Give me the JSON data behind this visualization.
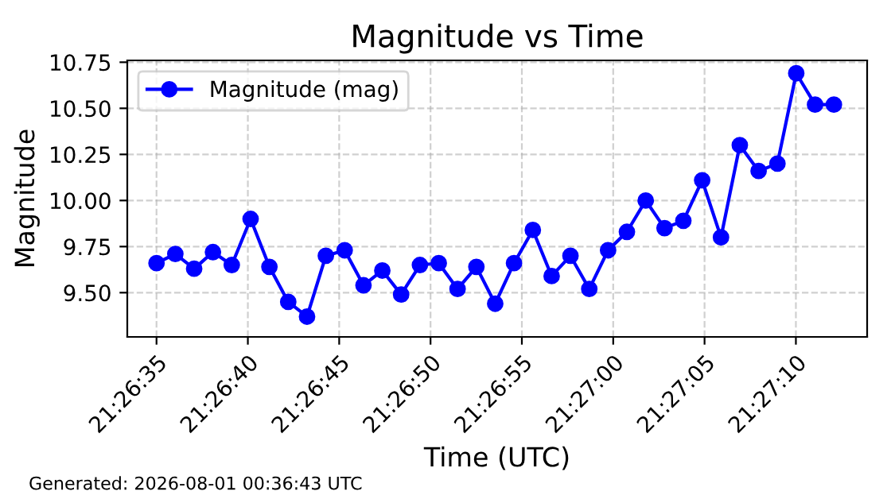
{
  "chart_data": {
    "type": "line",
    "title": "Magnitude vs Time",
    "xlabel": "Time (UTC)",
    "ylabel": "Magnitude",
    "x": [
      "2026-08-01T21:26:35",
      "2026-08-01T21:26:36.03",
      "2026-08-01T21:26:37.06",
      "2026-08-01T21:26:38.09",
      "2026-08-01T21:26:39.12",
      "2026-08-01T21:26:40.15",
      "2026-08-01T21:26:41.18",
      "2026-08-01T21:26:42.21",
      "2026-08-01T21:26:43.24",
      "2026-08-01T21:26:44.27",
      "2026-08-01T21:26:45.30",
      "2026-08-01T21:26:46.33",
      "2026-08-01T21:26:47.36",
      "2026-08-01T21:26:48.39",
      "2026-08-01T21:26:49.42",
      "2026-08-01T21:26:50.45",
      "2026-08-01T21:26:51.48",
      "2026-08-01T21:26:52.51",
      "2026-08-01T21:26:53.54",
      "2026-08-01T21:26:54.57",
      "2026-08-01T21:26:55.60",
      "2026-08-01T21:26:56.63",
      "2026-08-01T21:26:57.66",
      "2026-08-01T21:26:58.69",
      "2026-08-01T21:26:59.72",
      "2026-08-01T21:27:00.75",
      "2026-08-01T21:27:01.78",
      "2026-08-01T21:27:02.81",
      "2026-08-01T21:27:03.84",
      "2026-08-01T21:27:04.87",
      "2026-08-01T21:27:05.90",
      "2026-08-01T21:27:06.93",
      "2026-08-01T21:27:07.96",
      "2026-08-01T21:27:08.99",
      "2026-08-01T21:27:10.02",
      "2026-08-01T21:27:11.05",
      "2026-08-01T21:27:12.08"
    ],
    "series": [
      {
        "name": "Magnitude (mag)",
        "color": "#0000ff",
        "values": [
          9.66,
          9.71,
          9.63,
          9.72,
          9.65,
          9.9,
          9.64,
          9.45,
          9.37,
          9.7,
          9.73,
          9.54,
          9.62,
          9.49,
          9.65,
          9.66,
          9.52,
          9.64,
          9.44,
          9.66,
          9.84,
          9.59,
          9.7,
          9.52,
          9.73,
          9.83,
          10.0,
          9.85,
          9.89,
          10.11,
          9.8,
          10.3,
          10.16,
          10.2,
          10.69,
          10.52,
          10.52
        ]
      }
    ],
    "xlim": [
      "2026-08-01T21:26:33.4",
      "2026-08-01T21:27:13.9"
    ],
    "xticks": [
      {
        "value": "2026-08-01T21:26:35",
        "label": "21:26:35"
      },
      {
        "value": "2026-08-01T21:26:40",
        "label": "21:26:40"
      },
      {
        "value": "2026-08-01T21:26:45",
        "label": "21:26:45"
      },
      {
        "value": "2026-08-01T21:26:50",
        "label": "21:26:50"
      },
      {
        "value": "2026-08-01T21:26:55",
        "label": "21:26:55"
      },
      {
        "value": "2026-08-01T21:27:00",
        "label": "21:27:00"
      },
      {
        "value": "2026-08-01T21:27:05",
        "label": "21:27:05"
      },
      {
        "value": "2026-08-01T21:27:10",
        "label": "21:27:10"
      }
    ],
    "ylim": [
      9.26,
      10.76
    ],
    "yticks": [
      {
        "value": 9.5,
        "label": "9.50"
      },
      {
        "value": 9.75,
        "label": "9.75"
      },
      {
        "value": 10,
        "label": "10.00"
      },
      {
        "value": 10.25,
        "label": "10.25"
      },
      {
        "value": 10.5,
        "label": "10.50"
      },
      {
        "value": 10.75,
        "label": "10.75"
      }
    ],
    "grid": true,
    "legend": "top left",
    "marker": "circle",
    "line_style": "solid",
    "annotations": [
      "Generated: 2026-08-01 00:36:43 UTC"
    ]
  }
}
